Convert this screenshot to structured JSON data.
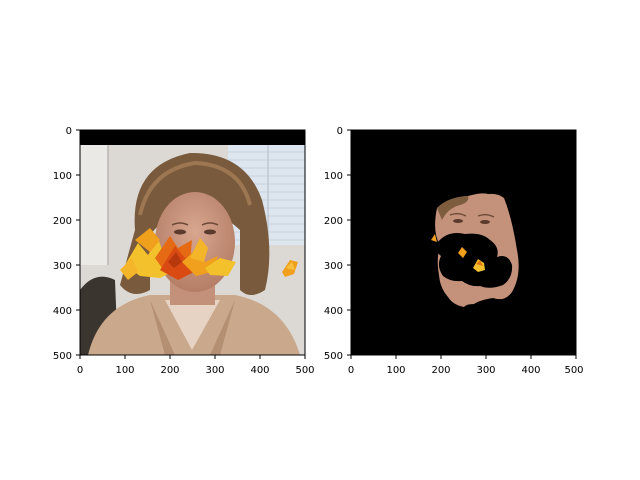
{
  "panels": [
    {
      "name": "left",
      "x_ticks": [
        "0",
        "100",
        "200",
        "300",
        "400",
        "500"
      ],
      "y_ticks": [
        "0",
        "100",
        "200",
        "300",
        "400",
        "500"
      ],
      "content": "occluded face photo with autumn leaves"
    },
    {
      "name": "right",
      "x_ticks": [
        "0",
        "100",
        "200",
        "300",
        "400",
        "500"
      ],
      "y_ticks": [
        "0",
        "100",
        "200",
        "300",
        "400",
        "500"
      ],
      "content": "segmented face on black background with holes"
    }
  ],
  "colors": {
    "black": "#000000",
    "skin": "#c4917a",
    "hair": "#7a5a3c",
    "jacket": "#c9a88c",
    "wall": "#e4e2df",
    "blinds": "#d9e3ec",
    "leaf_orange": "#f0a01c",
    "leaf_red": "#d94b12",
    "leaf_yellow": "#f2c12c"
  },
  "axis": {
    "xlim": [
      0,
      500
    ],
    "ylim": [
      500,
      0
    ]
  }
}
